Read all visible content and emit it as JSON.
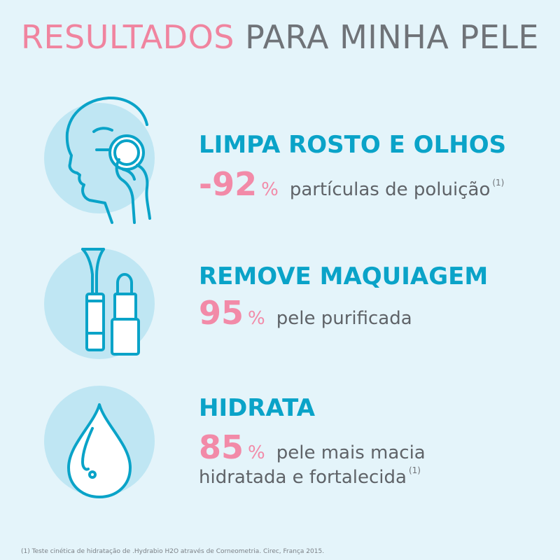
{
  "title": {
    "highlight": "RESULTADOS",
    "rest": "PARA MINHA PELE"
  },
  "benefits": [
    {
      "icon": "face-cleansing-icon",
      "heading": "LIMPA ROSTO E OLHOS",
      "value": "-92",
      "unit": "%",
      "description": "partículas de poluição",
      "note": "(1)"
    },
    {
      "icon": "makeup-icon",
      "heading": "REMOVE MAQUIAGEM",
      "value": "95",
      "unit": "%",
      "description": "pele purificada"
    },
    {
      "icon": "water-drop-icon",
      "heading": "HIDRATA",
      "value": "85",
      "unit": "%",
      "description": "pele mais macia",
      "description_line2": "hidratada e fortalecida",
      "note": "(1)"
    }
  ],
  "footnote": "(1) Teste cinética de hidratação de .Hydrabio H2O através de Corneometria. Cirec, França 2015.",
  "colors": {
    "background": "#e4f4fa",
    "accent_pink": "#f0849f",
    "accent_blue": "#0aa3c8",
    "circle": "#bfe6f3",
    "text_gray": "#5f6368"
  }
}
